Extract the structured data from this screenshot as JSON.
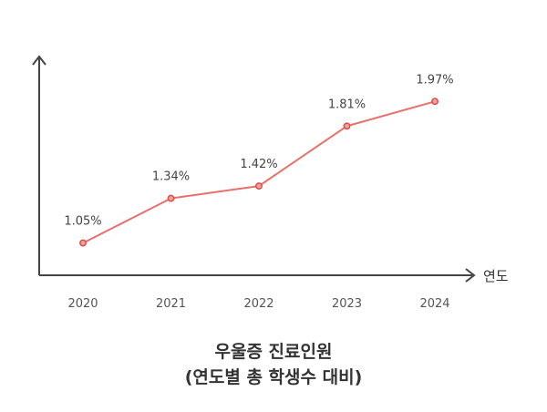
{
  "chart_data": {
    "type": "line",
    "categories": [
      "2020",
      "2021",
      "2022",
      "2023",
      "2024"
    ],
    "series": [
      {
        "values": [
          1.05,
          1.34,
          1.42,
          1.81,
          1.97
        ],
        "color": "#e8706a"
      }
    ],
    "data_labels": [
      "1.05%",
      "1.34%",
      "1.42%",
      "1.81%",
      "1.97%"
    ],
    "xlabel": "연도",
    "ylabel": "",
    "ylim": [
      0.84,
      2.25
    ],
    "grid": false,
    "axis_color": "#444444"
  },
  "caption": {
    "line1": "우울증 진료인원",
    "line2": "(연도별 총 학생수 대비)"
  }
}
